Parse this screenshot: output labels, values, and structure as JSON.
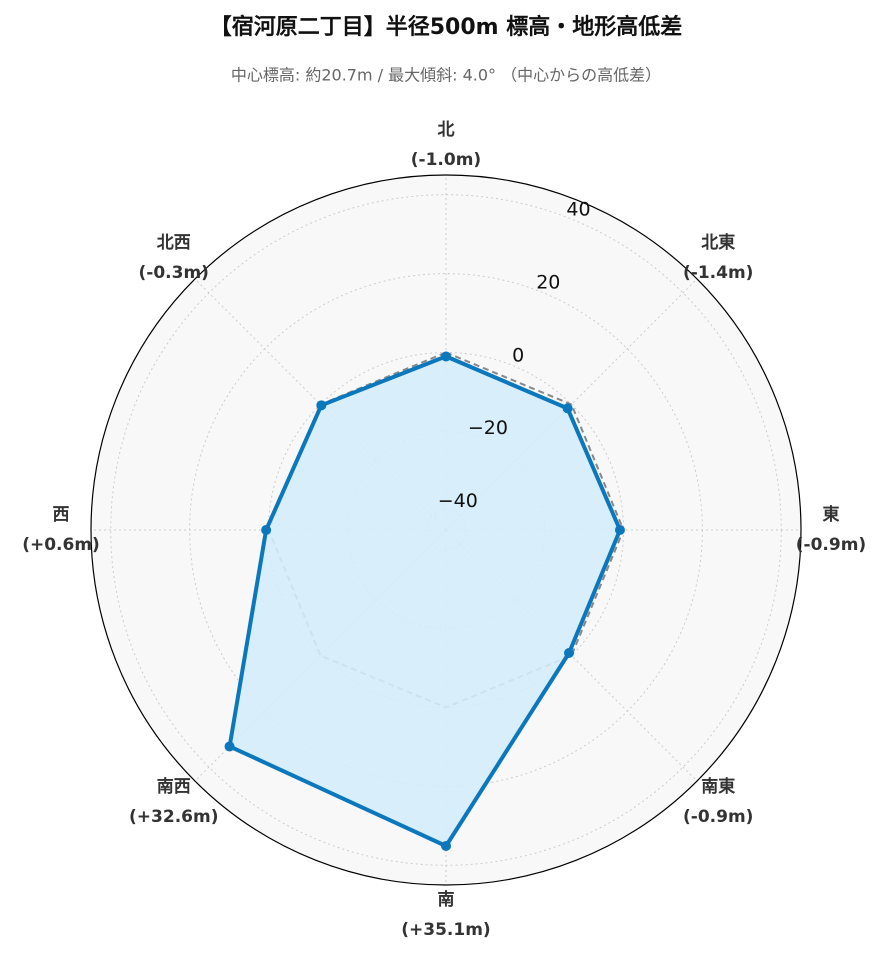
{
  "chart_data": {
    "type": "radar",
    "title": "【宿河原二丁目】半径500m 標高・地形高低差",
    "subtitle": "中心標高: 約20.7m / 最大傾斜: 4.0°  （中心からの高低差）",
    "categories": [
      "北",
      "北東",
      "東",
      "南東",
      "南",
      "南西",
      "西",
      "北西"
    ],
    "series": [
      {
        "color": "#0b77bd",
        "fill": "#d4ecf9",
        "values": [
          -1.0,
          -1.4,
          -0.9,
          -0.9,
          35.1,
          32.6,
          0.6,
          -0.3
        ],
        "value_labels": [
          "(-1.0m)",
          "(-1.4m)",
          "(-0.9m)",
          "(-0.9m)",
          "(+35.1m)",
          "(+32.6m)",
          "(+0.6m)",
          "(-0.3m)"
        ]
      },
      {
        "color": "#888888",
        "dashed": true,
        "values": [
          0,
          0,
          0,
          0,
          0,
          0,
          0,
          0
        ]
      }
    ],
    "ylim": [
      -45,
      45
    ],
    "yticks": [
      {
        "value": -40,
        "label": "−40"
      },
      {
        "value": -20,
        "label": "−20"
      },
      0,
      20,
      40
    ],
    "grid": true
  }
}
